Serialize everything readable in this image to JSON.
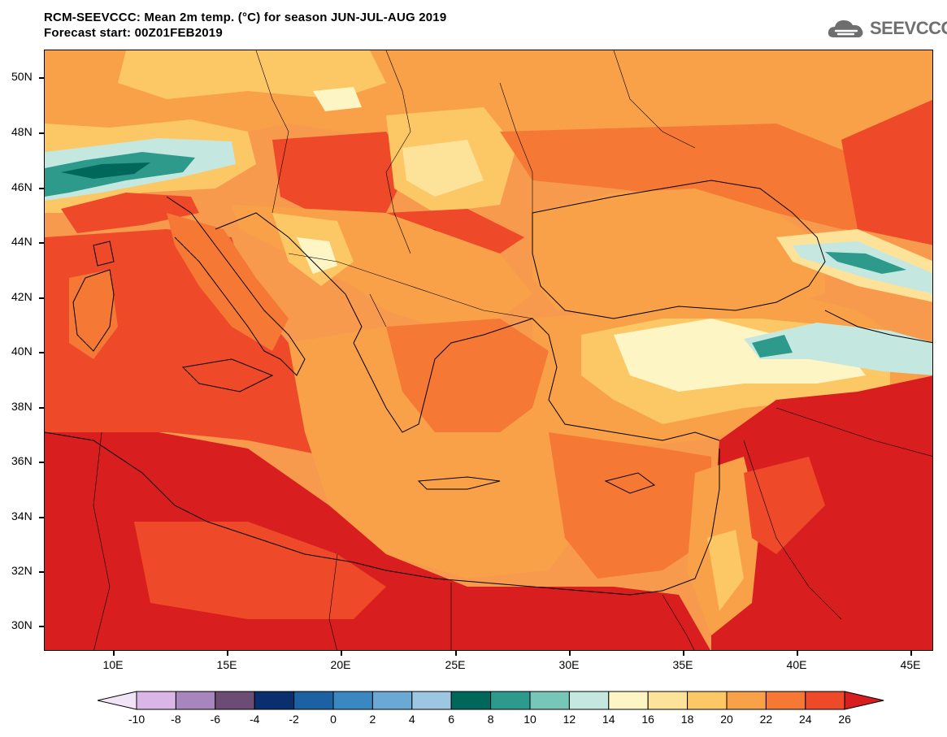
{
  "header": {
    "title_line1": "RCM-SEEVCCC: Mean 2m temp. (°C) for season JUN-JUL-AUG 2019",
    "title_line2": "Forecast start: 00Z01FEB2019",
    "logo_text": "SEEVCCC",
    "logo_icon": "cloud-icon"
  },
  "axes": {
    "lat_labels": [
      "50N",
      "48N",
      "46N",
      "44N",
      "42N",
      "40N",
      "38N",
      "36N",
      "34N",
      "32N",
      "30N"
    ],
    "lon_labels": [
      "10E",
      "15E",
      "20E",
      "25E",
      "30E",
      "35E",
      "40E",
      "45E"
    ]
  },
  "colorbar": {
    "labels": [
      "-10",
      "-8",
      "-6",
      "-4",
      "-2",
      "0",
      "2",
      "4",
      "6",
      "8",
      "10",
      "12",
      "14",
      "16",
      "18",
      "20",
      "22",
      "24",
      "26"
    ],
    "colors": [
      "#f0e4f6",
      "#d9b6e6",
      "#a786bd",
      "#6b4c74",
      "#0a2f6e",
      "#1c61a2",
      "#3a87c2",
      "#6aa9d6",
      "#9dc6e2",
      "#00685a",
      "#2e9a8c",
      "#78c6b8",
      "#c4e7e0",
      "#fdf6c4",
      "#fde39a",
      "#fcc866",
      "#f9a148",
      "#f57934",
      "#ee4a2a",
      "#d81e1e"
    ]
  },
  "map": {
    "colors": {
      "very_hot": "#d81e1e",
      "hot": "#ee4a2a",
      "warm": "#f57934",
      "mild": "#f9a148",
      "cool": "#fcc866",
      "light": "#fde39a",
      "pale": "#fdf6c4",
      "mint": "#c4e7e0",
      "teal": "#2e9a8c",
      "dark_teal": "#00685a"
    }
  }
}
